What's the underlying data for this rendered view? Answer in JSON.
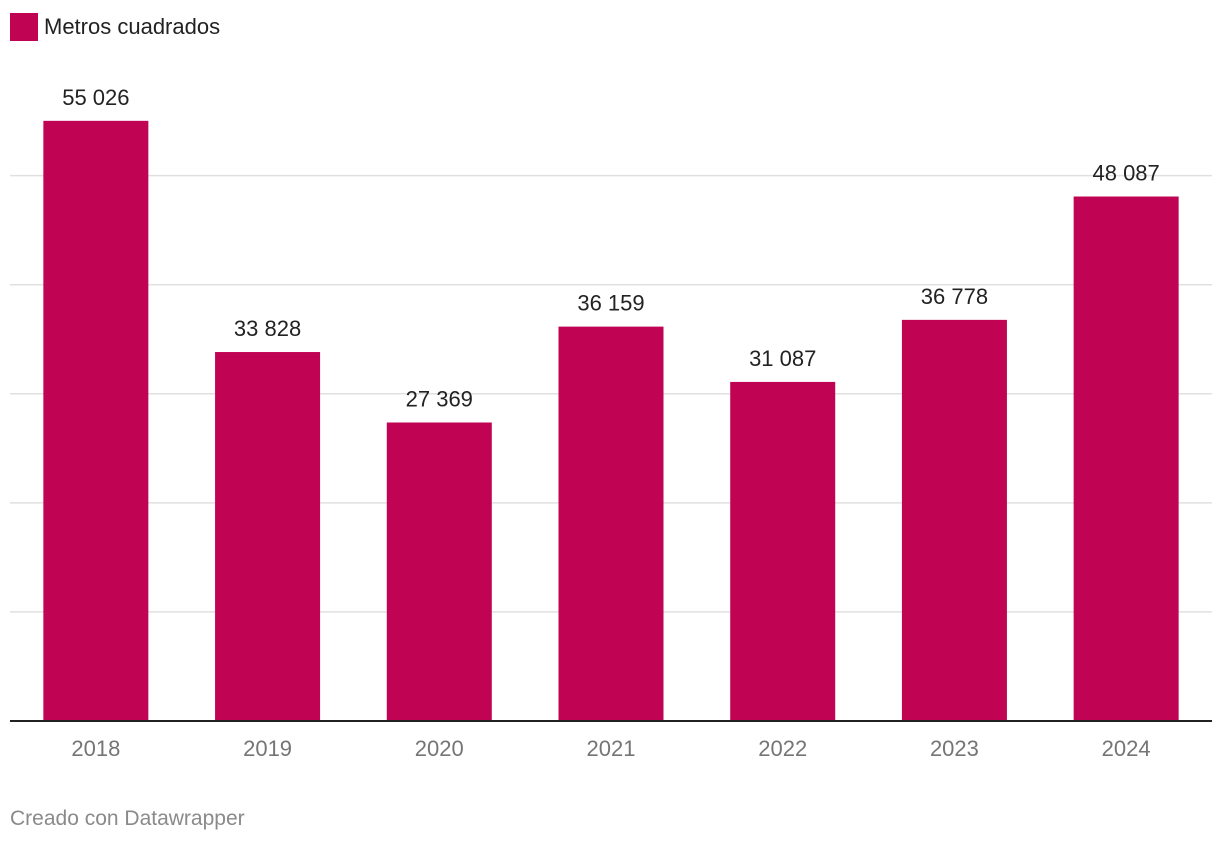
{
  "colors": {
    "bar": "#c10353",
    "grid": "#e0e0e0",
    "axis": "#222222",
    "tick_text": "#757575",
    "label_text": "#222222",
    "footer_text": "#8a8a8a"
  },
  "legend": {
    "label": "Metros cuadrados"
  },
  "footer": {
    "credit": "Creado con Datawrapper"
  },
  "chart_data": {
    "type": "bar",
    "categories": [
      "2018",
      "2019",
      "2020",
      "2021",
      "2022",
      "2023",
      "2024"
    ],
    "series": [
      {
        "name": "Metros cuadrados",
        "values": [
          55026,
          33828,
          27369,
          36159,
          31087,
          36778,
          48087
        ],
        "labels": [
          "55 026",
          "33 828",
          "27 369",
          "36 159",
          "31 087",
          "36 778",
          "48 087"
        ]
      }
    ],
    "ylim": [
      0,
      60000
    ],
    "gridlines": [
      10000,
      20000,
      30000,
      40000,
      50000
    ],
    "grid": true,
    "legend_position": "top-left",
    "title": "",
    "xlabel": "",
    "ylabel": ""
  }
}
